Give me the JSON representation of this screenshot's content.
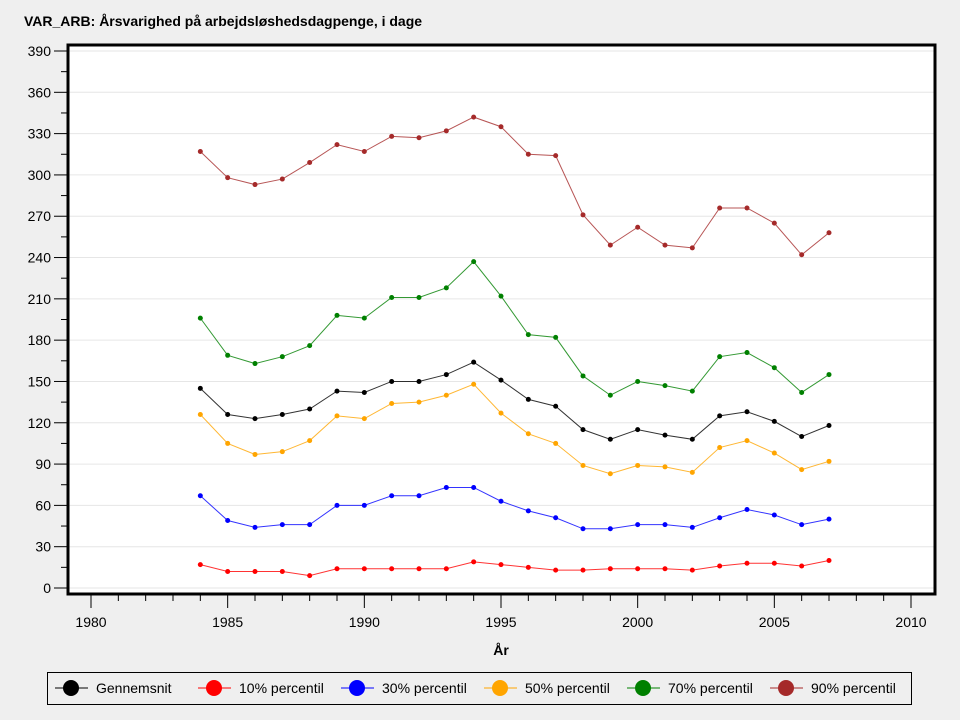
{
  "chart_data": {
    "type": "line",
    "title": "VAR_ARB: Årsvarighed på arbejdsløshedsdagpenge, i dage",
    "xlabel": "År",
    "ylabel": "",
    "xlim": [
      1979,
      2011
    ],
    "ylim": [
      -5,
      395
    ],
    "xticks": [
      1980,
      1985,
      1990,
      1995,
      2000,
      2005,
      2010
    ],
    "yticks": [
      0,
      30,
      60,
      90,
      120,
      150,
      180,
      210,
      240,
      270,
      300,
      330,
      360,
      390
    ],
    "grid": true,
    "legend_position": "bottom",
    "x": [
      1984,
      1985,
      1986,
      1987,
      1988,
      1989,
      1990,
      1991,
      1992,
      1993,
      1994,
      1995,
      1996,
      1997,
      1998,
      1999,
      2000,
      2001,
      2002,
      2003,
      2004,
      2005,
      2006,
      2007
    ],
    "series": [
      {
        "name": "Gennemsnit",
        "color": "#000000",
        "values": [
          145,
          126,
          123,
          126,
          130,
          143,
          142,
          150,
          150,
          155,
          164,
          151,
          137,
          132,
          115,
          108,
          115,
          111,
          108,
          125,
          128,
          121,
          110,
          118
        ]
      },
      {
        "name": "10% percentil",
        "color": "#ff0000",
        "values": [
          17,
          12,
          12,
          12,
          9,
          14,
          14,
          14,
          14,
          14,
          19,
          17,
          15,
          13,
          13,
          14,
          14,
          14,
          13,
          16,
          18,
          18,
          16,
          20
        ]
      },
      {
        "name": "30% percentil",
        "color": "#0000ff",
        "values": [
          67,
          49,
          44,
          46,
          46,
          60,
          60,
          67,
          67,
          73,
          73,
          63,
          56,
          51,
          43,
          43,
          46,
          46,
          44,
          51,
          57,
          53,
          46,
          50
        ]
      },
      {
        "name": "50% percentil",
        "color": "#ffa500",
        "values": [
          126,
          105,
          97,
          99,
          107,
          125,
          123,
          134,
          135,
          140,
          148,
          127,
          112,
          105,
          89,
          83,
          89,
          88,
          84,
          102,
          107,
          98,
          86,
          92
        ]
      },
      {
        "name": "70% percentil",
        "color": "#008000",
        "values": [
          196,
          169,
          163,
          168,
          176,
          198,
          196,
          211,
          211,
          218,
          237,
          212,
          184,
          182,
          154,
          140,
          150,
          147,
          143,
          168,
          171,
          160,
          142,
          155
        ]
      },
      {
        "name": "90% percentil",
        "color": "#a52a2a",
        "values": [
          317,
          298,
          293,
          297,
          309,
          322,
          317,
          328,
          327,
          332,
          342,
          335,
          315,
          314,
          271,
          249,
          262,
          249,
          247,
          276,
          276,
          265,
          242,
          258
        ]
      }
    ]
  }
}
